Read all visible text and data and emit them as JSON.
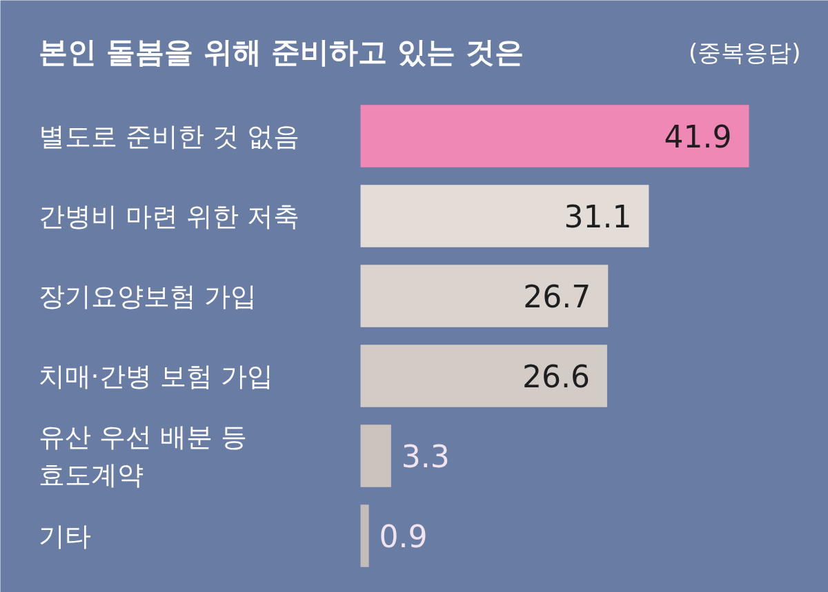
{
  "chart_data": {
    "type": "bar",
    "orientation": "horizontal",
    "title": "본인 돌봄을 위해 준비하고 있는 것은",
    "subtitle": "(중복응답)",
    "categories": [
      "별도로 준비한 것 없음",
      "간병비 마련 위한 저축",
      "장기요양보험 가입",
      "치매·간병 보험 가입",
      "유산 우선 배분 등\n효도계약",
      "기타"
    ],
    "values": [
      41.9,
      31.1,
      26.7,
      26.6,
      3.3,
      0.9
    ],
    "colors": [
      "#f088b6",
      "#e3dcd7",
      "#dbd4ce",
      "#d3ccc6",
      "#cbc4be",
      "#c4bdb7"
    ],
    "data_labels": true
  }
}
